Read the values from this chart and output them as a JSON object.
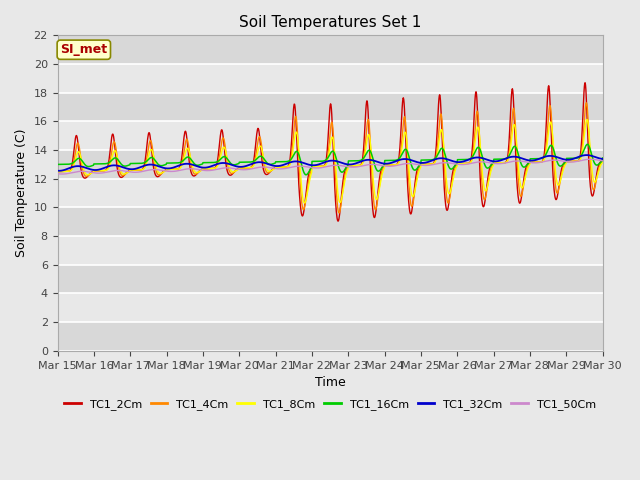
{
  "title": "Soil Temperatures Set 1",
  "xlabel": "Time",
  "ylabel": "Soil Temperature (C)",
  "ylim": [
    0,
    22
  ],
  "yticks": [
    0,
    2,
    4,
    6,
    8,
    10,
    12,
    14,
    16,
    18,
    20,
    22
  ],
  "x_labels": [
    "Mar 15",
    "Mar 16",
    "Mar 17",
    "Mar 18",
    "Mar 19",
    "Mar 20",
    "Mar 21",
    "Mar 22",
    "Mar 23",
    "Mar 24",
    "Mar 25",
    "Mar 26",
    "Mar 27",
    "Mar 28",
    "Mar 29",
    "Mar 30"
  ],
  "background_color": "#e8e8e8",
  "grid_color": "#ffffff",
  "legend_label": "SI_met",
  "series_colors": {
    "TC1_2Cm": "#cc0000",
    "TC1_4Cm": "#ff8800",
    "TC1_8Cm": "#ffff00",
    "TC1_16Cm": "#00cc00",
    "TC1_32Cm": "#0000cc",
    "TC1_50Cm": "#cc88cc"
  },
  "series_names": [
    "TC1_2Cm",
    "TC1_4Cm",
    "TC1_8Cm",
    "TC1_16Cm",
    "TC1_32Cm",
    "TC1_50Cm"
  ]
}
